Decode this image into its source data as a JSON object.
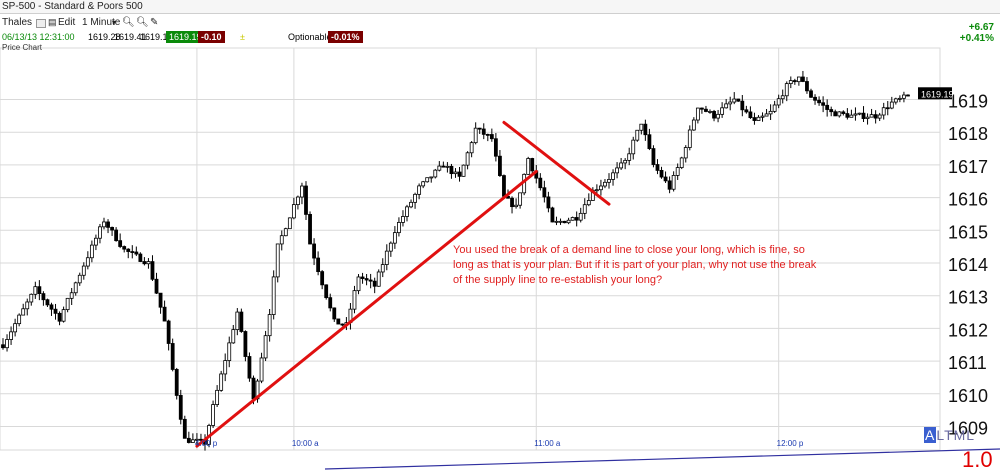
{
  "window": {
    "title": "SP-500  -  Standard & Poors 500"
  },
  "toolbar": {
    "symbol": "Thales",
    "edit": "Edit",
    "interval": "1 Minute"
  },
  "quote": {
    "datetime": "06/13/13 12:31:00",
    "open": "1619.28",
    "high": "1619.41",
    "low": "1619.19",
    "last": "1619.19",
    "change_badge": "-0.10",
    "optionable": "Optionable",
    "pct_badge": "-0.01%"
  },
  "chart_label": "Price Chart",
  "right_change": {
    "abs": "+6.67",
    "pct": "+0.41%"
  },
  "annotation": "You used the break of a demand line to close your long, which is fine, so long as that is your plan.  But if it is part of your plan, why not use the break of the supply line to re-establish your long?",
  "bottom_right": {
    "highlight": "A",
    "rest": "LTML",
    "big": "1.0"
  },
  "colors": {
    "up": "#ffffff",
    "down": "#000000",
    "trendline": "#e01010",
    "text_red": "#e02020"
  },
  "chart_data": {
    "type": "candlestick",
    "title": "",
    "xlabel": "",
    "ylabel": "",
    "ylim": [
      1608.2,
      1620.3
    ],
    "y_ticks": [
      1609,
      1610,
      1611,
      1612,
      1613,
      1614,
      1615,
      1616,
      1617,
      1618,
      1619
    ],
    "x_ticks": [
      {
        "index": 48,
        "label": "4:00 p"
      },
      {
        "index": 72,
        "label": "10:00 a"
      },
      {
        "index": 132,
        "label": "11:00 a"
      },
      {
        "index": 192,
        "label": "12:00 p"
      }
    ],
    "last_price_label": "1619.19",
    "anchors": [
      [
        0,
        1611.5
      ],
      [
        8,
        1613.2
      ],
      [
        14,
        1612.3
      ],
      [
        25,
        1615.3
      ],
      [
        30,
        1614.4
      ],
      [
        36,
        1614.0
      ],
      [
        40,
        1612.2
      ],
      [
        43,
        1610.0
      ],
      [
        45,
        1608.6
      ],
      [
        50,
        1608.5
      ],
      [
        52,
        1609.6
      ],
      [
        58,
        1612.5
      ],
      [
        62,
        1609.8
      ],
      [
        66,
        1612.5
      ],
      [
        68,
        1614.5
      ],
      [
        74,
        1616.4
      ],
      [
        76,
        1614.6
      ],
      [
        80,
        1613.0
      ],
      [
        82,
        1612.2
      ],
      [
        85,
        1612.1
      ],
      [
        88,
        1613.6
      ],
      [
        92,
        1613.3
      ],
      [
        97,
        1615.0
      ],
      [
        103,
        1616.3
      ],
      [
        109,
        1617.0
      ],
      [
        113,
        1616.6
      ],
      [
        117,
        1618.1
      ],
      [
        121,
        1617.8
      ],
      [
        124,
        1616.0
      ],
      [
        127,
        1615.7
      ],
      [
        130,
        1617.2
      ],
      [
        134,
        1616.0
      ],
      [
        136,
        1615.2
      ],
      [
        142,
        1615.4
      ],
      [
        146,
        1616.2
      ],
      [
        150,
        1616.6
      ],
      [
        154,
        1617.1
      ],
      [
        158,
        1618.3
      ],
      [
        161,
        1617.0
      ],
      [
        165,
        1616.3
      ],
      [
        168,
        1617.2
      ],
      [
        172,
        1618.8
      ],
      [
        176,
        1618.5
      ],
      [
        181,
        1619.0
      ],
      [
        186,
        1618.3
      ],
      [
        190,
        1618.6
      ],
      [
        194,
        1619.4
      ],
      [
        197,
        1619.7
      ],
      [
        200,
        1619.1
      ],
      [
        205,
        1618.6
      ],
      [
        210,
        1618.5
      ],
      [
        216,
        1618.5
      ],
      [
        220,
        1618.9
      ],
      [
        224,
        1619.1
      ]
    ],
    "trendlines": [
      {
        "name": "demand line",
        "from": [
          48,
          1608.4
        ],
        "to": [
          132,
          1616.8
        ]
      },
      {
        "name": "supply line",
        "from": [
          124,
          1618.3
        ],
        "to": [
          150,
          1615.8
        ]
      }
    ]
  }
}
